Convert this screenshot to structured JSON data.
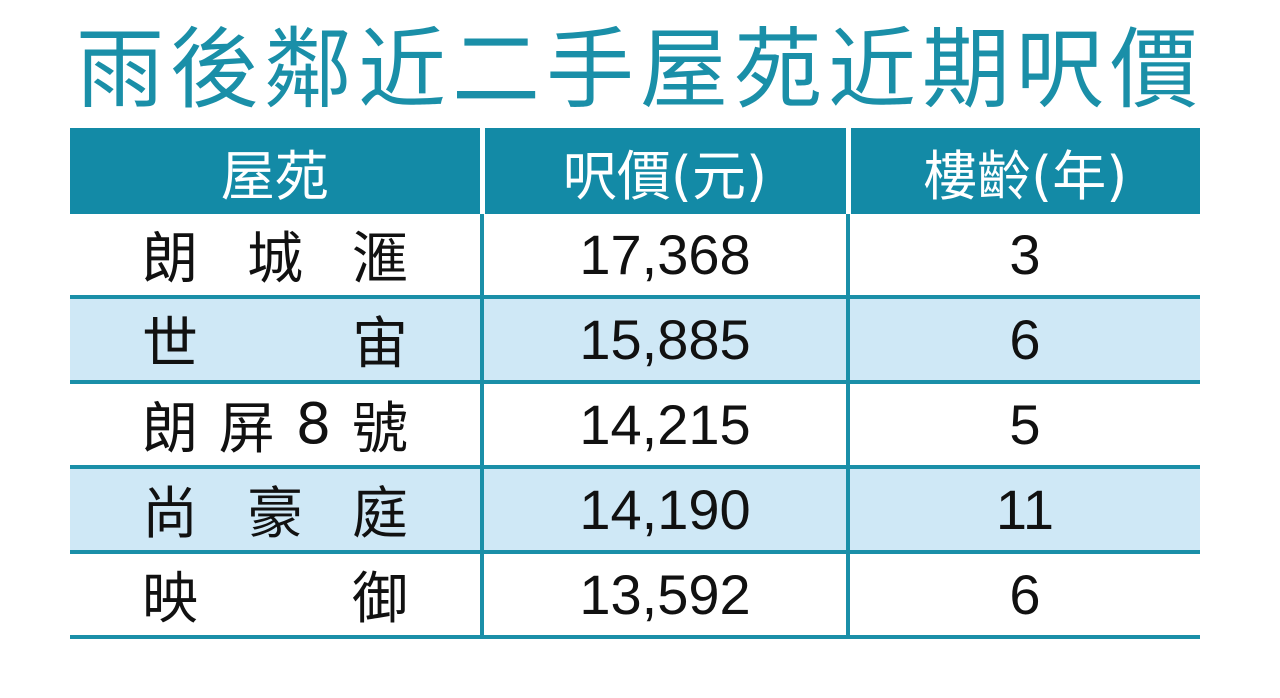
{
  "chart_data": {
    "type": "table",
    "title": "雨後鄰近二手屋苑近期呎價",
    "columns": [
      "屋苑",
      "呎價(元)",
      "樓齡(年)"
    ],
    "rows": [
      {
        "estate_chars": [
          "朗",
          "城",
          "滙"
        ],
        "price": "17,368",
        "age": "3"
      },
      {
        "estate_chars": [
          "世",
          "宙"
        ],
        "price": "15,885",
        "age": "6"
      },
      {
        "estate_chars": [
          "朗",
          "屏",
          "8",
          "號"
        ],
        "price": "14,215",
        "age": "5"
      },
      {
        "estate_chars": [
          "尚",
          "豪",
          "庭"
        ],
        "price": "14,190",
        "age": "11"
      },
      {
        "estate_chars": [
          "映",
          "御"
        ],
        "price": "13,592",
        "age": "6"
      }
    ],
    "colors": {
      "title": "#1a8fa8",
      "header_bg": "#138aa6",
      "header_text": "#ffffff",
      "alt_row_bg": "#cfe8f6",
      "rule": "#1a8fa8"
    }
  }
}
